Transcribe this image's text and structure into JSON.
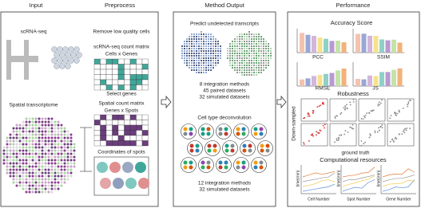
{
  "headers": {
    "input": "Input",
    "preprocess": "Preprocess",
    "output": "Method Output",
    "performance": "Performance"
  },
  "input": {
    "scrna": "scRNA-seq",
    "spatial": "Spatial transcriptome"
  },
  "preprocess": {
    "remove": "Remove low quality cells",
    "sc_matrix": "scRNA-seq count matrix",
    "sc_dims": "Cells x Genes",
    "select": "Select genes",
    "sp_matrix": "Spatial count matrix",
    "sp_dims": "Genes x Spots",
    "coords": "Coordinates of spots"
  },
  "output": {
    "predict": "Predict undetected transcripts",
    "predict_lines": [
      "8 integration methods",
      "45 paired datasets",
      "32 simulated datasets"
    ],
    "deconv": "Cell type deconvolution",
    "deconv_lines": [
      "12 integration methods",
      "32 simulated datasets"
    ]
  },
  "performance": {
    "accuracy": "Accuracy Score",
    "metrics": [
      "PCC",
      "SSIM",
      "RMSE",
      "JS"
    ],
    "robustness": "Robustness",
    "down": "Down-sampled",
    "truth": "ground truth",
    "resources": "Computational resources",
    "time": "time(min)",
    "xlabels": [
      "Cell Number",
      "Spot Number",
      "Gene Number"
    ]
  }
}
